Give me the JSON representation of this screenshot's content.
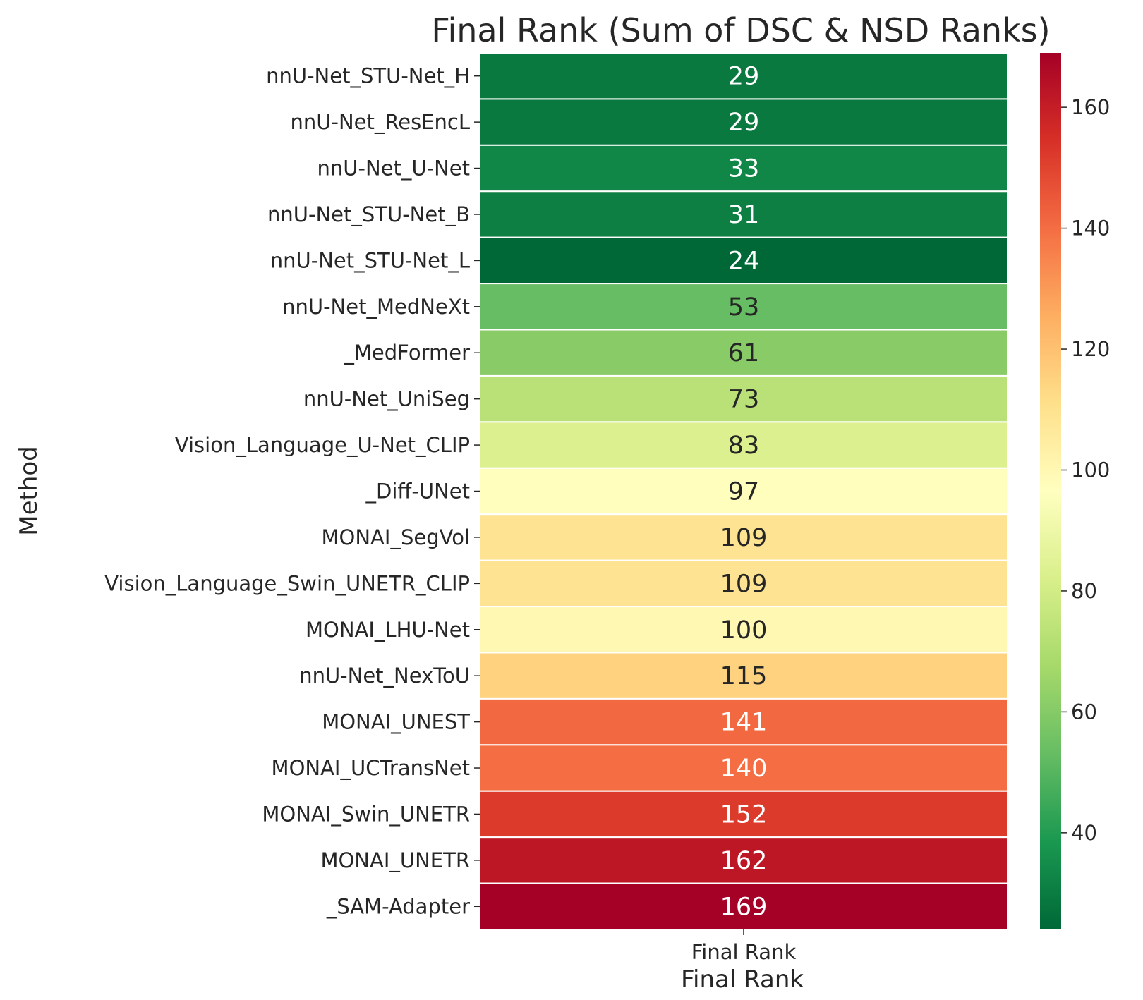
{
  "chart_data": {
    "type": "heatmap",
    "title": "Final Rank (Sum of DSC & NSD Ranks)",
    "xlabel": "Final Rank",
    "ylabel": "Method",
    "columns": [
      "Final Rank"
    ],
    "rows": [
      {
        "label": "nnU-Net_STU-Net_H",
        "value": 29
      },
      {
        "label": "nnU-Net_ResEncL",
        "value": 29
      },
      {
        "label": "nnU-Net_U-Net",
        "value": 33
      },
      {
        "label": "nnU-Net_STU-Net_B",
        "value": 31
      },
      {
        "label": "nnU-Net_STU-Net_L",
        "value": 24
      },
      {
        "label": "nnU-Net_MedNeXt",
        "value": 53
      },
      {
        "label": "_MedFormer",
        "value": 61
      },
      {
        "label": "nnU-Net_UniSeg",
        "value": 73
      },
      {
        "label": "Vision_Language_U-Net_CLIP",
        "value": 83
      },
      {
        "label": "_Diff-UNet",
        "value": 97
      },
      {
        "label": "MONAI_SegVol",
        "value": 109
      },
      {
        "label": "Vision_Language_Swin_UNETR_CLIP",
        "value": 109
      },
      {
        "label": "MONAI_LHU-Net",
        "value": 100
      },
      {
        "label": "nnU-Net_NexToU",
        "value": 115
      },
      {
        "label": "MONAI_UNEST",
        "value": 141
      },
      {
        "label": "MONAI_UCTransNet",
        "value": 140
      },
      {
        "label": "MONAI_Swin_UNETR",
        "value": 152
      },
      {
        "label": "MONAI_UNETR",
        "value": 162
      },
      {
        "label": "_SAM-Adapter",
        "value": 169
      }
    ],
    "colormap": "RdYlGn_r",
    "vmin": 24,
    "vmax": 169,
    "colorbar_ticks": [
      40,
      60,
      80,
      100,
      120,
      140,
      160
    ],
    "grid": false,
    "legend": "right"
  }
}
